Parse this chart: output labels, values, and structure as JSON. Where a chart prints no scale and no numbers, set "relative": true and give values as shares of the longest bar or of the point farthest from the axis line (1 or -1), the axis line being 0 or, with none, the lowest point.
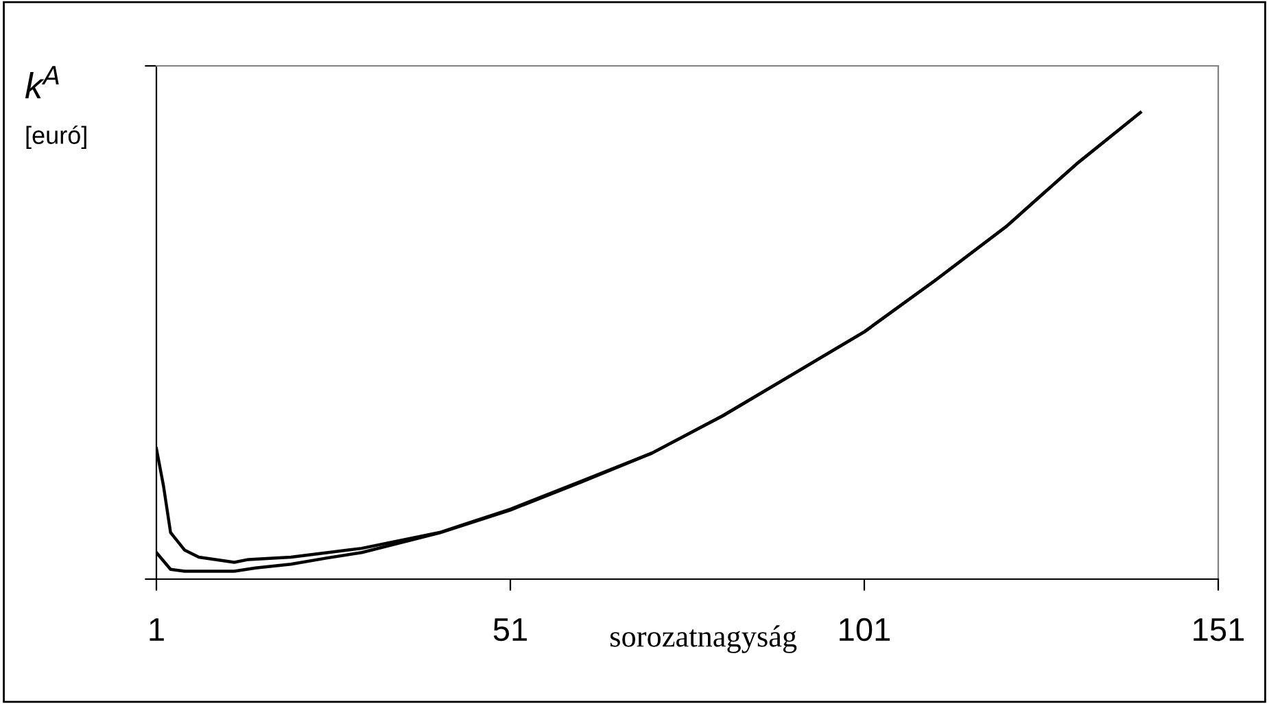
{
  "chart_data": {
    "type": "line",
    "relative": true,
    "xlabel": "sorozatnagyság",
    "ylabel": "k$^{A}$",
    "annotations": [
      "[euró]"
    ],
    "xlim": [
      1,
      151
    ],
    "xticks": [
      1,
      51,
      101,
      151
    ],
    "grid": false,
    "legend": false,
    "series": [
      {
        "color": "#000000",
        "x": [
          1,
          2,
          3,
          5,
          7,
          12,
          14,
          20,
          30,
          41,
          51,
          61,
          71,
          81,
          91,
          101,
          111,
          121,
          131,
          140
        ],
        "values": [
          0.28,
          0.2,
          0.1,
          0.062,
          0.047,
          0.036,
          0.042,
          0.047,
          0.066,
          0.1,
          0.15,
          0.21,
          0.27,
          0.35,
          0.44,
          0.53,
          0.64,
          0.755,
          0.89,
          1
        ]
      },
      {
        "color": "#000000",
        "x": [
          1,
          2,
          3,
          5,
          12,
          15,
          20,
          25,
          30,
          41,
          51,
          61,
          71,
          81,
          91,
          101,
          111,
          121,
          131,
          140
        ],
        "values": [
          0.057,
          0.039,
          0.021,
          0.017,
          0.017,
          0.024,
          0.032,
          0.045,
          0.057,
          0.099,
          0.148,
          0.208,
          0.27,
          0.35,
          0.44,
          0.53,
          0.64,
          0.755,
          0.89,
          1
        ]
      }
    ]
  }
}
